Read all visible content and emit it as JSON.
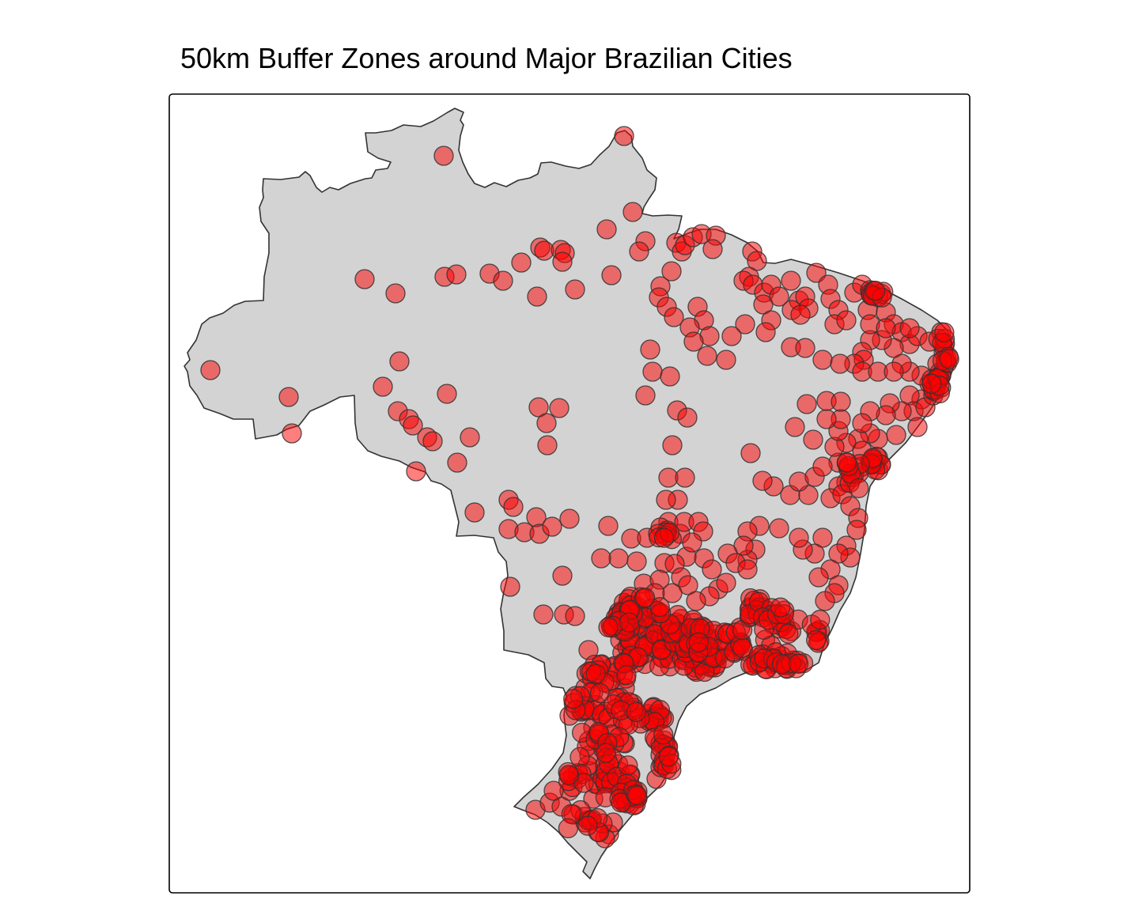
{
  "title": "50km Buffer Zones around Major Brazilian Cities",
  "colors": {
    "background": "#ffffff",
    "land": "#d3d3d3",
    "land_border": "#333333",
    "buffer_fill": "#ff0000",
    "buffer_border": "#333333",
    "panel_border": "#000000"
  },
  "layers": {
    "country": "Brazil",
    "buffer_distance": "50km"
  }
}
